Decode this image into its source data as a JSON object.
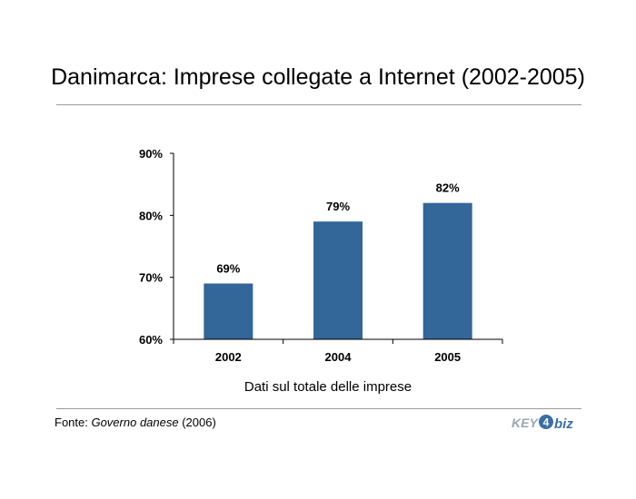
{
  "page": {
    "title": "Danimarca: Imprese collegate a Internet (2002-2005)",
    "subtitle": "Dati sul totale delle imprese",
    "source_prefix": "Fonte: ",
    "source_name": "Governo danese",
    "source_suffix": " (2006)",
    "logo_text_a": "KEY",
    "logo_text_b": "biz",
    "logo_numeral": "4"
  },
  "colors": {
    "bar": "#336699",
    "axis": "#000000",
    "rule": "#9a9a9a",
    "logo_blue": "#3a6ea5",
    "logo_gray": "#9aa7b3"
  },
  "chart_data": {
    "type": "bar",
    "categories": [
      "2002",
      "2004",
      "2005"
    ],
    "values": [
      69,
      79,
      82
    ],
    "value_labels": [
      "69%",
      "79%",
      "82%"
    ],
    "ylim": [
      60,
      90
    ],
    "yticks": [
      60,
      70,
      80,
      90
    ],
    "ytick_labels": [
      "60%",
      "70%",
      "80%",
      "90%"
    ],
    "grid": false,
    "legend": "none"
  }
}
